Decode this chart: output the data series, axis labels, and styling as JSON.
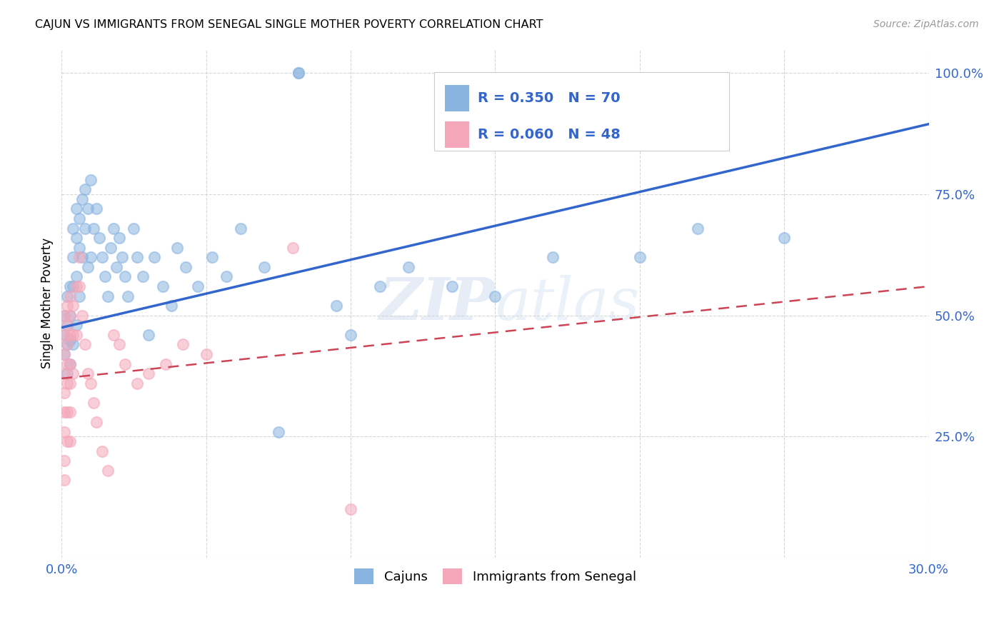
{
  "title": "CAJUN VS IMMIGRANTS FROM SENEGAL SINGLE MOTHER POVERTY CORRELATION CHART",
  "source": "Source: ZipAtlas.com",
  "ylabel": "Single Mother Poverty",
  "ytick_labels": [
    "",
    "25.0%",
    "50.0%",
    "75.0%",
    "100.0%"
  ],
  "legend_cajun_R": "R = 0.350",
  "legend_cajun_N": "N = 70",
  "legend_senegal_R": "R = 0.060",
  "legend_senegal_N": "N = 48",
  "legend_label_cajun": "Cajuns",
  "legend_label_senegal": "Immigrants from Senegal",
  "cajun_color": "#8ab4e0",
  "senegal_color": "#f4a7b9",
  "trendline_cajun_color": "#3366cc",
  "trendline_senegal_color": "#cc4455",
  "watermark_zip": "ZIP",
  "watermark_atlas": "atlas",
  "xlim": [
    0.0,
    0.3
  ],
  "ylim": [
    0.0,
    1.05
  ],
  "cajun_trend_x0": 0.0,
  "cajun_trend_y0": 0.475,
  "cajun_trend_x1": 0.3,
  "cajun_trend_y1": 0.895,
  "senegal_trend_x0": 0.0,
  "senegal_trend_y0": 0.37,
  "senegal_trend_x1": 0.3,
  "senegal_trend_y1": 0.56,
  "cajun_x": [
    0.001,
    0.001,
    0.001,
    0.002,
    0.002,
    0.002,
    0.002,
    0.003,
    0.003,
    0.003,
    0.003,
    0.004,
    0.004,
    0.004,
    0.004,
    0.005,
    0.005,
    0.005,
    0.005,
    0.006,
    0.006,
    0.006,
    0.007,
    0.007,
    0.008,
    0.008,
    0.009,
    0.009,
    0.01,
    0.01,
    0.011,
    0.012,
    0.013,
    0.014,
    0.015,
    0.016,
    0.017,
    0.018,
    0.019,
    0.02,
    0.021,
    0.022,
    0.023,
    0.025,
    0.026,
    0.028,
    0.03,
    0.032,
    0.035,
    0.038,
    0.04,
    0.043,
    0.047,
    0.052,
    0.057,
    0.062,
    0.07,
    0.075,
    0.082,
    0.082,
    0.095,
    0.1,
    0.11,
    0.12,
    0.135,
    0.15,
    0.17,
    0.2,
    0.22,
    0.25
  ],
  "cajun_y": [
    0.5,
    0.46,
    0.42,
    0.54,
    0.48,
    0.44,
    0.38,
    0.56,
    0.5,
    0.45,
    0.4,
    0.68,
    0.62,
    0.56,
    0.44,
    0.72,
    0.66,
    0.58,
    0.48,
    0.7,
    0.64,
    0.54,
    0.74,
    0.62,
    0.76,
    0.68,
    0.72,
    0.6,
    0.78,
    0.62,
    0.68,
    0.72,
    0.66,
    0.62,
    0.58,
    0.54,
    0.64,
    0.68,
    0.6,
    0.66,
    0.62,
    0.58,
    0.54,
    0.68,
    0.62,
    0.58,
    0.46,
    0.62,
    0.56,
    0.52,
    0.64,
    0.6,
    0.56,
    0.62,
    0.58,
    0.68,
    0.6,
    0.26,
    1.0,
    1.0,
    0.52,
    0.46,
    0.56,
    0.6,
    0.56,
    0.54,
    0.62,
    0.62,
    0.68,
    0.66
  ],
  "senegal_x": [
    0.001,
    0.001,
    0.001,
    0.001,
    0.001,
    0.001,
    0.001,
    0.001,
    0.001,
    0.002,
    0.002,
    0.002,
    0.002,
    0.002,
    0.002,
    0.002,
    0.003,
    0.003,
    0.003,
    0.003,
    0.003,
    0.003,
    0.003,
    0.004,
    0.004,
    0.004,
    0.005,
    0.005,
    0.006,
    0.006,
    0.007,
    0.008,
    0.009,
    0.01,
    0.011,
    0.012,
    0.014,
    0.016,
    0.018,
    0.02,
    0.022,
    0.026,
    0.03,
    0.036,
    0.042,
    0.05,
    0.08,
    0.1
  ],
  "senegal_y": [
    0.5,
    0.46,
    0.42,
    0.38,
    0.34,
    0.3,
    0.26,
    0.2,
    0.16,
    0.52,
    0.48,
    0.44,
    0.4,
    0.36,
    0.3,
    0.24,
    0.54,
    0.5,
    0.46,
    0.4,
    0.36,
    0.3,
    0.24,
    0.52,
    0.46,
    0.38,
    0.56,
    0.46,
    0.62,
    0.56,
    0.5,
    0.44,
    0.38,
    0.36,
    0.32,
    0.28,
    0.22,
    0.18,
    0.46,
    0.44,
    0.4,
    0.36,
    0.38,
    0.4,
    0.44,
    0.42,
    0.64,
    0.1
  ]
}
